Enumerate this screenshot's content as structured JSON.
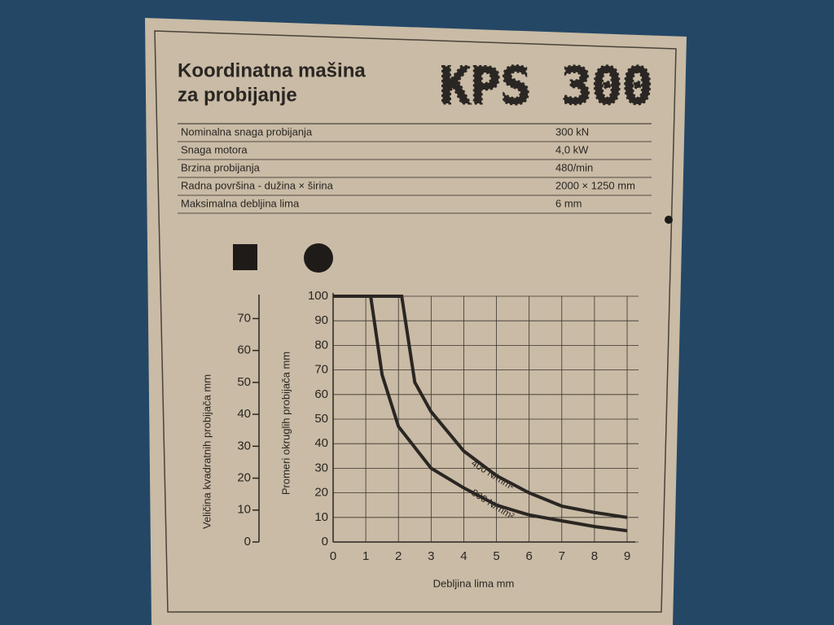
{
  "header": {
    "title_lines": [
      "Koordinatna mašina",
      "za probijanje"
    ],
    "model": "KPS 300"
  },
  "specs": {
    "rows": [
      [
        "Nominalna snaga probijanja",
        "300 kN"
      ],
      [
        "Snaga motora",
        "4,0 kW"
      ],
      [
        "Brzina probijanja",
        "480/min"
      ],
      [
        "Radna površina - dužina × širina",
        "2000 × 1250 mm"
      ],
      [
        "Maksimalna debljina lima",
        "6 mm"
      ]
    ]
  },
  "chart_data": {
    "type": "line",
    "x_label": "Debljina lima mm",
    "y_label": "Promeri okruglih probijača mm",
    "y2_label": "Veličina kvadratnih probijača mm",
    "xlim": [
      0,
      9
    ],
    "xticks": [
      0,
      1,
      2,
      3,
      4,
      5,
      6,
      7,
      8,
      9
    ],
    "ylim": [
      0,
      100
    ],
    "yticks": [
      0,
      10,
      20,
      30,
      40,
      50,
      60,
      70,
      80,
      90,
      100
    ],
    "y2lim": [
      0,
      77
    ],
    "y2ticks": [
      0,
      10,
      20,
      30,
      40,
      50,
      60,
      70
    ],
    "grid": true,
    "series": [
      {
        "name": "800 N/mm²",
        "color": "#2a2623",
        "x": [
          0,
          1.15,
          1.5,
          2,
          3,
          4,
          5,
          6,
          7,
          8,
          9
        ],
        "values": [
          100,
          100,
          68,
          47,
          30,
          22,
          15,
          11,
          8.6,
          6.3,
          4.6
        ]
      },
      {
        "name": "400 N/mm²",
        "color": "#2a2623",
        "x": [
          0,
          2.1,
          2.5,
          3,
          4,
          5,
          6,
          7,
          8,
          9
        ],
        "values": [
          100,
          100,
          65,
          53,
          37,
          27,
          20,
          14.6,
          12,
          10
        ]
      }
    ]
  }
}
